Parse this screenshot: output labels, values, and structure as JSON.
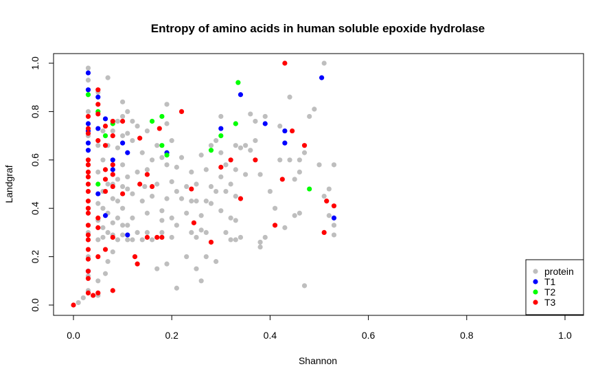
{
  "chart_data": {
    "type": "scatter",
    "title": "Entropy of amino acids in human soluble epoxide hydrolase",
    "xlabel": "Shannon",
    "ylabel": "Landgraf",
    "xlim": [
      0,
      1
    ],
    "ylim": [
      0,
      1
    ],
    "xticks": [
      "0.0",
      "0.2",
      "0.4",
      "0.6",
      "0.8",
      "1.0"
    ],
    "yticks": [
      "0.0",
      "0.2",
      "0.4",
      "0.6",
      "0.8",
      "1.0"
    ],
    "grid": false,
    "legend_position": "bottom-right",
    "legend": [
      "protein",
      "T1",
      "T2",
      "T3"
    ],
    "series": [
      {
        "name": "protein",
        "color": "#bebebe",
        "points": [
          [
            0.01,
            0.01
          ],
          [
            0.02,
            0.03
          ],
          [
            0.03,
            0.98
          ],
          [
            0.03,
            0.93
          ],
          [
            0.03,
            0.87
          ],
          [
            0.03,
            0.8
          ],
          [
            0.03,
            0.7
          ],
          [
            0.03,
            0.6
          ],
          [
            0.03,
            0.5
          ],
          [
            0.03,
            0.4
          ],
          [
            0.03,
            0.3
          ],
          [
            0.03,
            0.2
          ],
          [
            0.03,
            0.12
          ],
          [
            0.03,
            0.06
          ],
          [
            0.05,
            0.88
          ],
          [
            0.05,
            0.66
          ],
          [
            0.05,
            0.55
          ],
          [
            0.05,
            0.42
          ],
          [
            0.05,
            0.35
          ],
          [
            0.05,
            0.27
          ],
          [
            0.05,
            0.1
          ],
          [
            0.05,
            0.04
          ],
          [
            0.06,
            0.72
          ],
          [
            0.06,
            0.6
          ],
          [
            0.06,
            0.47
          ],
          [
            0.06,
            0.4
          ],
          [
            0.06,
            0.32
          ],
          [
            0.06,
            0.28
          ],
          [
            0.065,
            0.13
          ],
          [
            0.07,
            0.94
          ],
          [
            0.07,
            0.66
          ],
          [
            0.07,
            0.5
          ],
          [
            0.07,
            0.38
          ],
          [
            0.07,
            0.3
          ],
          [
            0.07,
            0.18
          ],
          [
            0.08,
            0.72
          ],
          [
            0.08,
            0.6
          ],
          [
            0.08,
            0.5
          ],
          [
            0.08,
            0.44
          ],
          [
            0.08,
            0.34
          ],
          [
            0.08,
            0.29
          ],
          [
            0.08,
            0.22
          ],
          [
            0.09,
            0.76
          ],
          [
            0.09,
            0.65
          ],
          [
            0.09,
            0.52
          ],
          [
            0.09,
            0.43
          ],
          [
            0.09,
            0.36
          ],
          [
            0.09,
            0.27
          ],
          [
            0.1,
            0.84
          ],
          [
            0.1,
            0.78
          ],
          [
            0.1,
            0.7
          ],
          [
            0.1,
            0.58
          ],
          [
            0.1,
            0.49
          ],
          [
            0.1,
            0.4
          ],
          [
            0.1,
            0.33
          ],
          [
            0.1,
            0.29
          ],
          [
            0.11,
            0.8
          ],
          [
            0.11,
            0.71
          ],
          [
            0.11,
            0.53
          ],
          [
            0.11,
            0.48
          ],
          [
            0.11,
            0.33
          ],
          [
            0.11,
            0.27
          ],
          [
            0.12,
            0.76
          ],
          [
            0.12,
            0.68
          ],
          [
            0.12,
            0.46
          ],
          [
            0.12,
            0.36
          ],
          [
            0.12,
            0.27
          ],
          [
            0.13,
            0.74
          ],
          [
            0.13,
            0.55
          ],
          [
            0.13,
            0.3
          ],
          [
            0.14,
            0.63
          ],
          [
            0.14,
            0.43
          ],
          [
            0.14,
            0.27
          ],
          [
            0.145,
            0.49
          ],
          [
            0.15,
            0.72
          ],
          [
            0.15,
            0.56
          ],
          [
            0.15,
            0.38
          ],
          [
            0.15,
            0.3
          ],
          [
            0.16,
            0.6
          ],
          [
            0.16,
            0.45
          ],
          [
            0.16,
            0.27
          ],
          [
            0.17,
            0.66
          ],
          [
            0.17,
            0.5
          ],
          [
            0.17,
            0.15
          ],
          [
            0.18,
            0.61
          ],
          [
            0.18,
            0.39
          ],
          [
            0.18,
            0.35
          ],
          [
            0.18,
            0.3
          ],
          [
            0.19,
            0.83
          ],
          [
            0.19,
            0.75
          ],
          [
            0.19,
            0.58
          ],
          [
            0.19,
            0.44
          ],
          [
            0.19,
            0.17
          ],
          [
            0.2,
            0.68
          ],
          [
            0.2,
            0.51
          ],
          [
            0.2,
            0.36
          ],
          [
            0.2,
            0.28
          ],
          [
            0.21,
            0.57
          ],
          [
            0.21,
            0.47
          ],
          [
            0.21,
            0.33
          ],
          [
            0.21,
            0.07
          ],
          [
            0.22,
            0.61
          ],
          [
            0.22,
            0.44
          ],
          [
            0.23,
            0.49
          ],
          [
            0.23,
            0.38
          ],
          [
            0.23,
            0.2
          ],
          [
            0.24,
            0.55
          ],
          [
            0.24,
            0.43
          ],
          [
            0.24,
            0.3
          ],
          [
            0.25,
            0.5
          ],
          [
            0.25,
            0.43
          ],
          [
            0.25,
            0.28
          ],
          [
            0.25,
            0.15
          ],
          [
            0.26,
            0.62
          ],
          [
            0.26,
            0.37
          ],
          [
            0.26,
            0.31
          ],
          [
            0.26,
            0.1
          ],
          [
            0.27,
            0.56
          ],
          [
            0.27,
            0.43
          ],
          [
            0.27,
            0.3
          ],
          [
            0.27,
            0.2
          ],
          [
            0.28,
            0.66
          ],
          [
            0.28,
            0.49
          ],
          [
            0.28,
            0.42
          ],
          [
            0.29,
            0.68
          ],
          [
            0.29,
            0.47
          ],
          [
            0.29,
            0.18
          ],
          [
            0.3,
            0.78
          ],
          [
            0.3,
            0.63
          ],
          [
            0.3,
            0.53
          ],
          [
            0.3,
            0.39
          ],
          [
            0.31,
            0.58
          ],
          [
            0.31,
            0.47
          ],
          [
            0.31,
            0.3
          ],
          [
            0.32,
            0.5
          ],
          [
            0.32,
            0.36
          ],
          [
            0.32,
            0.27
          ],
          [
            0.33,
            0.75
          ],
          [
            0.33,
            0.66
          ],
          [
            0.33,
            0.56
          ],
          [
            0.33,
            0.45
          ],
          [
            0.33,
            0.35
          ],
          [
            0.33,
            0.27
          ],
          [
            0.34,
            0.65
          ],
          [
            0.34,
            0.28
          ],
          [
            0.35,
            0.66
          ],
          [
            0.35,
            0.54
          ],
          [
            0.36,
            0.79
          ],
          [
            0.36,
            0.64
          ],
          [
            0.37,
            0.76
          ],
          [
            0.37,
            0.68
          ],
          [
            0.38,
            0.54
          ],
          [
            0.38,
            0.26
          ],
          [
            0.38,
            0.24
          ],
          [
            0.39,
            0.78
          ],
          [
            0.39,
            0.28
          ],
          [
            0.4,
            0.47
          ],
          [
            0.41,
            0.4
          ],
          [
            0.42,
            0.74
          ],
          [
            0.42,
            0.6
          ],
          [
            0.43,
            0.72
          ],
          [
            0.43,
            0.32
          ],
          [
            0.44,
            0.86
          ],
          [
            0.44,
            0.6
          ],
          [
            0.45,
            0.52
          ],
          [
            0.45,
            0.37
          ],
          [
            0.46,
            0.6
          ],
          [
            0.46,
            0.55
          ],
          [
            0.46,
            0.38
          ],
          [
            0.47,
            0.63
          ],
          [
            0.47,
            0.08
          ],
          [
            0.48,
            0.78
          ],
          [
            0.49,
            0.81
          ],
          [
            0.5,
            0.58
          ],
          [
            0.51,
            1.0
          ],
          [
            0.51,
            0.45
          ],
          [
            0.52,
            0.48
          ],
          [
            0.52,
            0.37
          ],
          [
            0.53,
            0.58
          ],
          [
            0.53,
            0.33
          ],
          [
            0.53,
            0.29
          ]
        ]
      },
      {
        "name": "T1",
        "color": "#0000ff",
        "points": [
          [
            0.03,
            0.96
          ],
          [
            0.03,
            0.89
          ],
          [
            0.03,
            0.75
          ],
          [
            0.03,
            0.72
          ],
          [
            0.03,
            0.67
          ],
          [
            0.03,
            0.64
          ],
          [
            0.03,
            0.14
          ],
          [
            0.05,
            0.86
          ],
          [
            0.05,
            0.73
          ],
          [
            0.05,
            0.46
          ],
          [
            0.065,
            0.77
          ],
          [
            0.065,
            0.37
          ],
          [
            0.08,
            0.6
          ],
          [
            0.08,
            0.56
          ],
          [
            0.1,
            0.67
          ],
          [
            0.11,
            0.63
          ],
          [
            0.11,
            0.29
          ],
          [
            0.19,
            0.63
          ],
          [
            0.3,
            0.73
          ],
          [
            0.34,
            0.87
          ],
          [
            0.39,
            0.75
          ],
          [
            0.43,
            0.72
          ],
          [
            0.43,
            0.67
          ],
          [
            0.505,
            0.94
          ],
          [
            0.53,
            0.36
          ]
        ]
      },
      {
        "name": "T2",
        "color": "#00ff00",
        "points": [
          [
            0.03,
            0.87
          ],
          [
            0.05,
            0.8
          ],
          [
            0.05,
            0.5
          ],
          [
            0.065,
            0.7
          ],
          [
            0.08,
            0.75
          ],
          [
            0.16,
            0.76
          ],
          [
            0.18,
            0.78
          ],
          [
            0.18,
            0.66
          ],
          [
            0.19,
            0.62
          ],
          [
            0.28,
            0.64
          ],
          [
            0.3,
            0.7
          ],
          [
            0.33,
            0.75
          ],
          [
            0.335,
            0.92
          ],
          [
            0.48,
            0.48
          ]
        ]
      },
      {
        "name": "T3",
        "color": "#ff0000",
        "points": [
          [
            0.0,
            0.0
          ],
          [
            0.03,
            0.78
          ],
          [
            0.03,
            0.73
          ],
          [
            0.03,
            0.71
          ],
          [
            0.03,
            0.6
          ],
          [
            0.03,
            0.58
          ],
          [
            0.03,
            0.55
          ],
          [
            0.03,
            0.53
          ],
          [
            0.03,
            0.5
          ],
          [
            0.03,
            0.47
          ],
          [
            0.03,
            0.43
          ],
          [
            0.03,
            0.4
          ],
          [
            0.03,
            0.38
          ],
          [
            0.03,
            0.33
          ],
          [
            0.03,
            0.29
          ],
          [
            0.03,
            0.27
          ],
          [
            0.03,
            0.23
          ],
          [
            0.03,
            0.19
          ],
          [
            0.03,
            0.14
          ],
          [
            0.03,
            0.11
          ],
          [
            0.03,
            0.05
          ],
          [
            0.04,
            0.04
          ],
          [
            0.05,
            0.89
          ],
          [
            0.05,
            0.83
          ],
          [
            0.05,
            0.79
          ],
          [
            0.05,
            0.68
          ],
          [
            0.05,
            0.36
          ],
          [
            0.05,
            0.32
          ],
          [
            0.05,
            0.2
          ],
          [
            0.05,
            0.05
          ],
          [
            0.065,
            0.74
          ],
          [
            0.065,
            0.66
          ],
          [
            0.065,
            0.56
          ],
          [
            0.065,
            0.52
          ],
          [
            0.065,
            0.47
          ],
          [
            0.065,
            0.23
          ],
          [
            0.08,
            0.76
          ],
          [
            0.08,
            0.7
          ],
          [
            0.08,
            0.58
          ],
          [
            0.08,
            0.54
          ],
          [
            0.08,
            0.49
          ],
          [
            0.08,
            0.28
          ],
          [
            0.08,
            0.06
          ],
          [
            0.1,
            0.76
          ],
          [
            0.1,
            0.46
          ],
          [
            0.125,
            0.2
          ],
          [
            0.13,
            0.17
          ],
          [
            0.135,
            0.69
          ],
          [
            0.135,
            0.5
          ],
          [
            0.15,
            0.54
          ],
          [
            0.15,
            0.28
          ],
          [
            0.16,
            0.49
          ],
          [
            0.17,
            0.28
          ],
          [
            0.175,
            0.73
          ],
          [
            0.18,
            0.28
          ],
          [
            0.22,
            0.8
          ],
          [
            0.24,
            0.48
          ],
          [
            0.245,
            0.34
          ],
          [
            0.28,
            0.26
          ],
          [
            0.3,
            0.57
          ],
          [
            0.32,
            0.6
          ],
          [
            0.34,
            0.44
          ],
          [
            0.37,
            0.6
          ],
          [
            0.41,
            0.33
          ],
          [
            0.425,
            0.52
          ],
          [
            0.43,
            1.0
          ],
          [
            0.445,
            0.72
          ],
          [
            0.47,
            0.66
          ],
          [
            0.51,
            0.3
          ],
          [
            0.515,
            0.43
          ],
          [
            0.53,
            0.41
          ]
        ]
      }
    ]
  }
}
